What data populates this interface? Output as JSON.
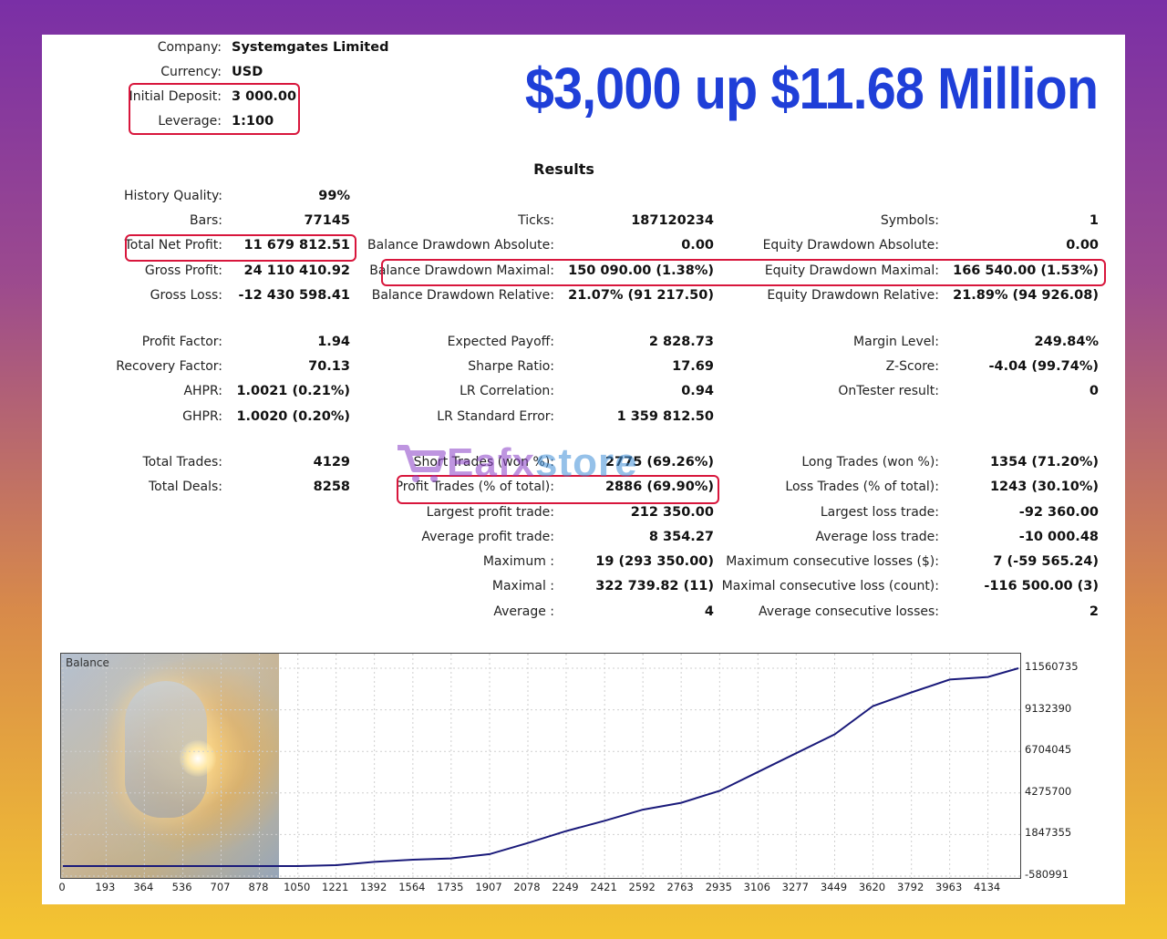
{
  "headline": "$3,000 up $11.68 Million",
  "header": {
    "company_label": "Company:",
    "company_value": "Systemgates Limited",
    "currency_label": "Currency:",
    "currency_value": "USD",
    "deposit_label": "Initial Deposit:",
    "deposit_value": "3 000.00",
    "leverage_label": "Leverage:",
    "leverage_value": "1:100"
  },
  "results_title": "Results",
  "col1": [
    {
      "label": "History Quality:",
      "value": "99%"
    },
    {
      "label": "Bars:",
      "value": "77145"
    },
    {
      "label": "Total Net Profit:",
      "value": "11 679 812.51"
    },
    {
      "label": "Gross Profit:",
      "value": "24 110 410.92"
    },
    {
      "label": "Gross Loss:",
      "value": "-12 430 598.41"
    },
    {
      "label": "Profit Factor:",
      "value": "1.94"
    },
    {
      "label": "Recovery Factor:",
      "value": "70.13"
    },
    {
      "label": "AHPR:",
      "value": "1.0021 (0.21%)"
    },
    {
      "label": "GHPR:",
      "value": "1.0020 (0.20%)"
    },
    {
      "label": "Total Trades:",
      "value": "4129"
    },
    {
      "label": "Total Deals:",
      "value": "8258"
    }
  ],
  "col2": [
    {
      "label": "Ticks:",
      "value": "187120234"
    },
    {
      "label": "Balance Drawdown Absolute:",
      "value": "0.00"
    },
    {
      "label": "Balance Drawdown Maximal:",
      "value": "150 090.00 (1.38%)"
    },
    {
      "label": "Balance Drawdown Relative:",
      "value": "21.07% (91 217.50)"
    },
    {
      "label": "Expected Payoff:",
      "value": "2 828.73"
    },
    {
      "label": "Sharpe Ratio:",
      "value": "17.69"
    },
    {
      "label": "LR Correlation:",
      "value": "0.94"
    },
    {
      "label": "LR Standard Error:",
      "value": "1 359 812.50"
    },
    {
      "label": "Short Trades (won %):",
      "value": "2775 (69.26%)"
    },
    {
      "label": "Profit Trades (% of total):",
      "value": "2886 (69.90%)"
    },
    {
      "label": "Largest profit trade:",
      "value": "212 350.00"
    },
    {
      "label": "Average profit trade:",
      "value": "8 354.27"
    },
    {
      "label": "Maximum :",
      "value": "19 (293 350.00)"
    },
    {
      "label": "Maximal :",
      "value": "322 739.82 (11)"
    },
    {
      "label": "Average :",
      "value": "4"
    }
  ],
  "col3": [
    {
      "label": "Symbols:",
      "value": "1"
    },
    {
      "label": "Equity Drawdown Absolute:",
      "value": "0.00"
    },
    {
      "label": "Equity Drawdown Maximal:",
      "value": "166 540.00 (1.53%)"
    },
    {
      "label": "Equity Drawdown Relative:",
      "value": "21.89% (94 926.08)"
    },
    {
      "label": "Margin Level:",
      "value": "249.84%"
    },
    {
      "label": "Z-Score:",
      "value": "-4.04 (99.74%)"
    },
    {
      "label": "OnTester result:",
      "value": "0"
    },
    {
      "label": "Long Trades (won %):",
      "value": "1354 (71.20%)"
    },
    {
      "label": "Loss Trades (% of total):",
      "value": "1243 (30.10%)"
    },
    {
      "label": "Largest loss trade:",
      "value": "-92 360.00"
    },
    {
      "label": "Average loss trade:",
      "value": "-10 000.48"
    },
    {
      "label": "Maximum consecutive losses ($):",
      "value": "7 (-59 565.24)"
    },
    {
      "label": "Maximal consecutive loss (count):",
      "value": "-116 500.00 (3)"
    },
    {
      "label": "Average consecutive losses:",
      "value": "2"
    }
  ],
  "watermark": "Eafxstore",
  "chart_data": {
    "type": "line",
    "title": "Balance",
    "series": [
      {
        "name": "Balance",
        "color": "#1a1a7a",
        "x": [
          0,
          193,
          364,
          536,
          707,
          878,
          1050,
          1221,
          1392,
          1564,
          1735,
          1907,
          2078,
          2249,
          2421,
          2592,
          2763,
          2935,
          3106,
          3277,
          3449,
          3620,
          3792,
          3963,
          4134,
          4270
        ],
        "values": [
          3000,
          3000,
          3000,
          3000,
          3000,
          3000,
          3000,
          60000,
          250000,
          380000,
          450000,
          700000,
          1350000,
          2050000,
          2650000,
          3300000,
          3700000,
          4400000,
          5500000,
          6600000,
          7700000,
          9350000,
          10150000,
          10900000,
          11050000,
          11560735
        ]
      }
    ],
    "x_ticks": [
      0,
      193,
      364,
      536,
      707,
      878,
      1050,
      1221,
      1392,
      1564,
      1735,
      1907,
      2078,
      2249,
      2421,
      2592,
      2763,
      2935,
      3106,
      3277,
      3449,
      3620,
      3792,
      3963,
      4134
    ],
    "y_ticks": [
      11560735,
      9132390,
      6704045,
      4275700,
      1847355,
      -580991
    ],
    "xlim": [
      0,
      4270
    ],
    "ylim": [
      -580991,
      12200000
    ],
    "grid": true,
    "legend": "none"
  }
}
